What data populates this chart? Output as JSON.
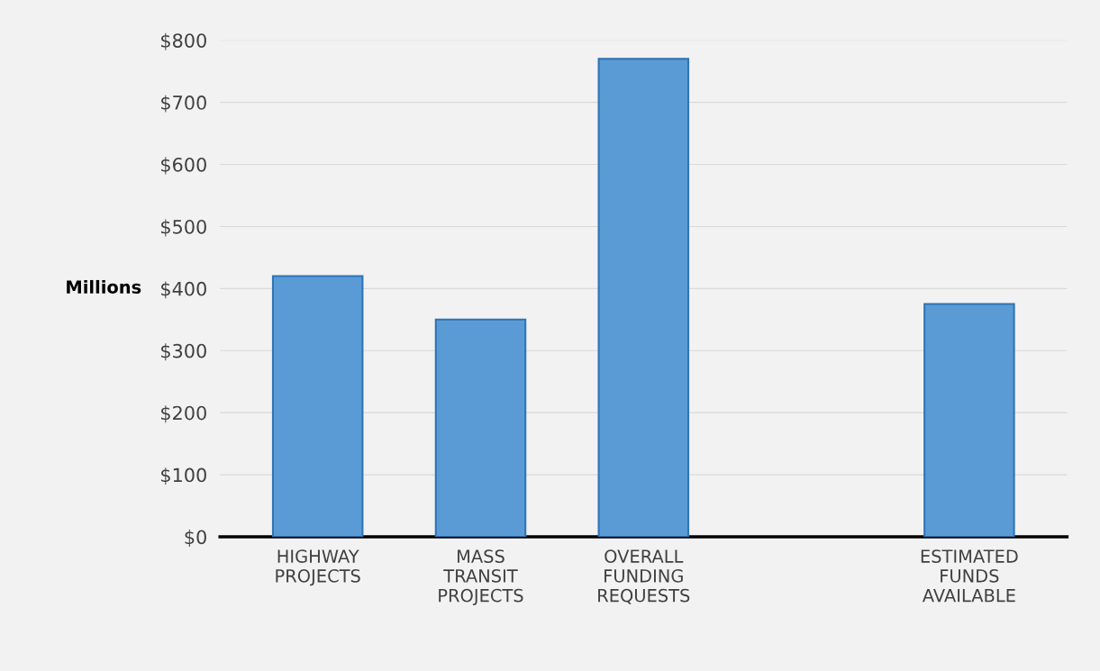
{
  "chart_data": {
    "type": "bar",
    "ylabel": "Millions",
    "categories": [
      "HIGHWAY\nPROJECTS",
      "MASS\nTRANSIT\nPROJECTS",
      "OVERALL\nFUNDING\nREQUESTS",
      null,
      "ESTIMATED\nFUNDS\nAVAILABLE"
    ],
    "values": [
      420,
      350,
      770,
      null,
      375
    ],
    "color": "#5b9bd5",
    "ylim": [
      0,
      800
    ],
    "yticks": [
      {
        "value": 0,
        "label": "$0"
      },
      {
        "value": 100,
        "label": "$100"
      },
      {
        "value": 200,
        "label": "$200"
      },
      {
        "value": 300,
        "label": "$300"
      },
      {
        "value": 400,
        "label": "$400"
      },
      {
        "value": 500,
        "label": "$500"
      },
      {
        "value": 600,
        "label": "$600"
      },
      {
        "value": 700,
        "label": "$700"
      },
      {
        "value": 800,
        "label": "$800"
      }
    ],
    "grid": "y"
  }
}
